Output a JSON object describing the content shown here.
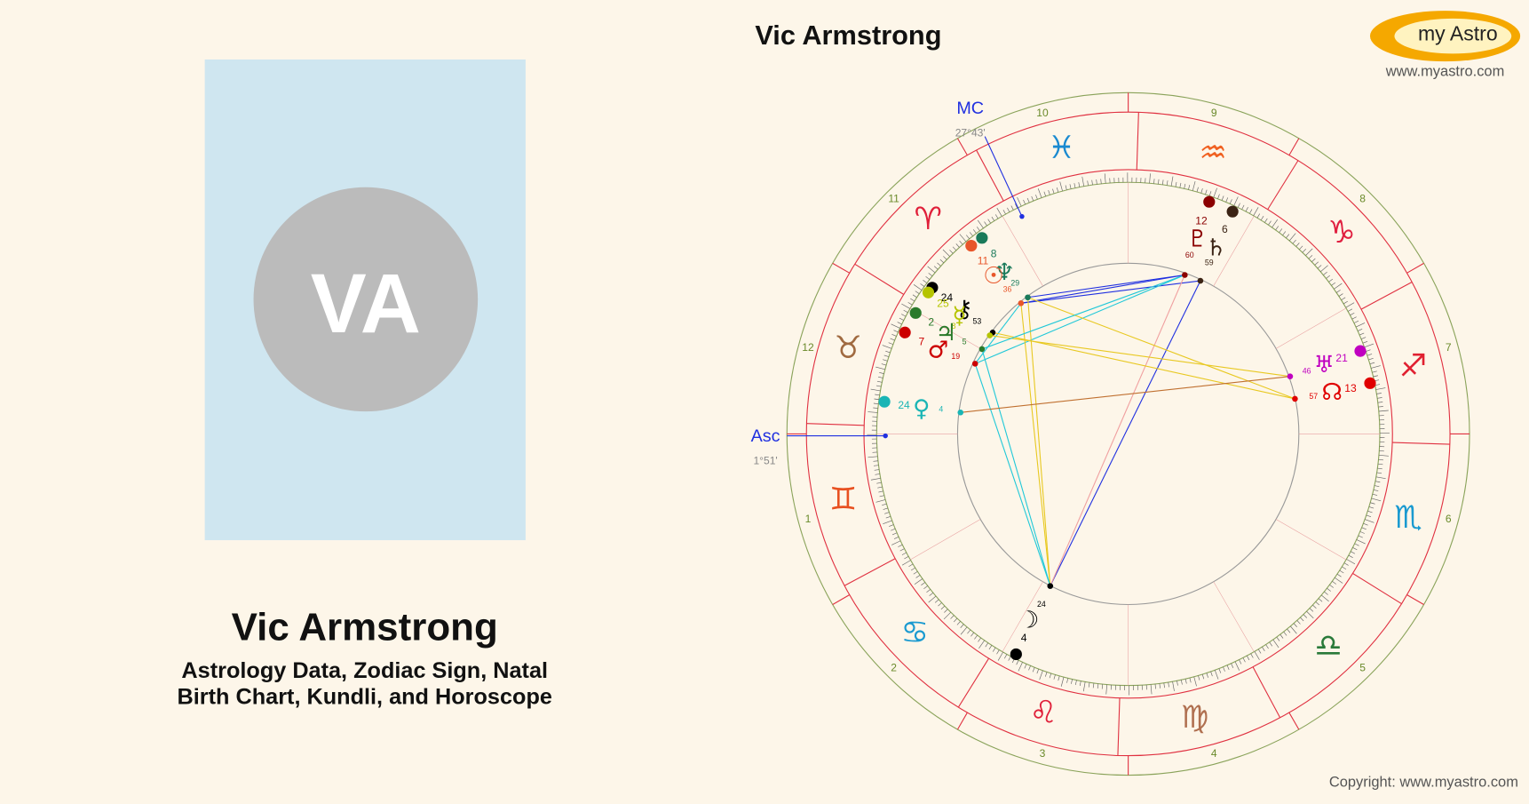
{
  "header": {
    "title": "Vic Armstrong",
    "logo": "my Astro",
    "url": "www.myastro.com"
  },
  "profile": {
    "initials": "VA",
    "name": "Vic Armstrong",
    "subtitle_lines": [
      "Astrology Data, Zodiac Sign, Natal",
      "Birth Chart, Kundli, and Horoscope"
    ]
  },
  "chart": {
    "angles": {
      "mc": {
        "label": "MC",
        "position": "27°43'"
      },
      "asc": {
        "label": "Asc",
        "position": "1°51'"
      }
    },
    "houses": [
      1,
      2,
      3,
      4,
      5,
      6,
      7,
      8,
      9,
      10,
      11,
      12
    ],
    "signs": [
      {
        "glyph": "♈",
        "color": "#e0203a"
      },
      {
        "glyph": "♉",
        "color": "#a06a40"
      },
      {
        "glyph": "♊",
        "color": "#e85020"
      },
      {
        "glyph": "♋",
        "color": "#1a9ad0"
      },
      {
        "glyph": "♌",
        "color": "#e0203a"
      },
      {
        "glyph": "♍",
        "color": "#b07050"
      },
      {
        "glyph": "♎",
        "color": "#2a7a3a"
      },
      {
        "glyph": "♏",
        "color": "#1a9ad0"
      },
      {
        "glyph": "♐",
        "color": "#e02030"
      },
      {
        "glyph": "♑",
        "color": "#e02040"
      },
      {
        "glyph": "♒",
        "color": "#f06020"
      },
      {
        "glyph": "♓",
        "color": "#1a8ad0"
      }
    ],
    "planets": [
      {
        "symbol": "♇",
        "degree": 12,
        "minute": 60,
        "color": "#8b0000"
      },
      {
        "symbol": "♄",
        "degree": 6,
        "minute": 59,
        "color": "#3b2314"
      },
      {
        "symbol": "♆",
        "degree": 8,
        "minute": 29,
        "color": "#1a7a5a"
      },
      {
        "symbol": "☉",
        "degree": 11,
        "minute": 36,
        "color": "#e8562a"
      },
      {
        "symbol": "⚷",
        "degree": 24,
        "minute": 53,
        "color": "#000000"
      },
      {
        "symbol": "☿",
        "degree": 25,
        "minute": 8,
        "color": "#b5c400"
      },
      {
        "symbol": "♃",
        "degree": 2,
        "minute": 5,
        "color": "#2a7a2a"
      },
      {
        "symbol": "♂",
        "degree": 7,
        "minute": 19,
        "color": "#cc0000"
      },
      {
        "symbol": "♀",
        "degree": 24,
        "minute": 4,
        "color": "#1ab5b5"
      },
      {
        "symbol": "♅",
        "degree": 21,
        "minute": 46,
        "color": "#c000c0"
      },
      {
        "symbol": "☊",
        "degree": 13,
        "minute": 57,
        "color": "#e00000"
      },
      {
        "symbol": "☽",
        "degree": 4,
        "minute": 24,
        "color": "#000000"
      }
    ]
  },
  "footer": {
    "copyright": "Copyright: www.myastro.com"
  }
}
